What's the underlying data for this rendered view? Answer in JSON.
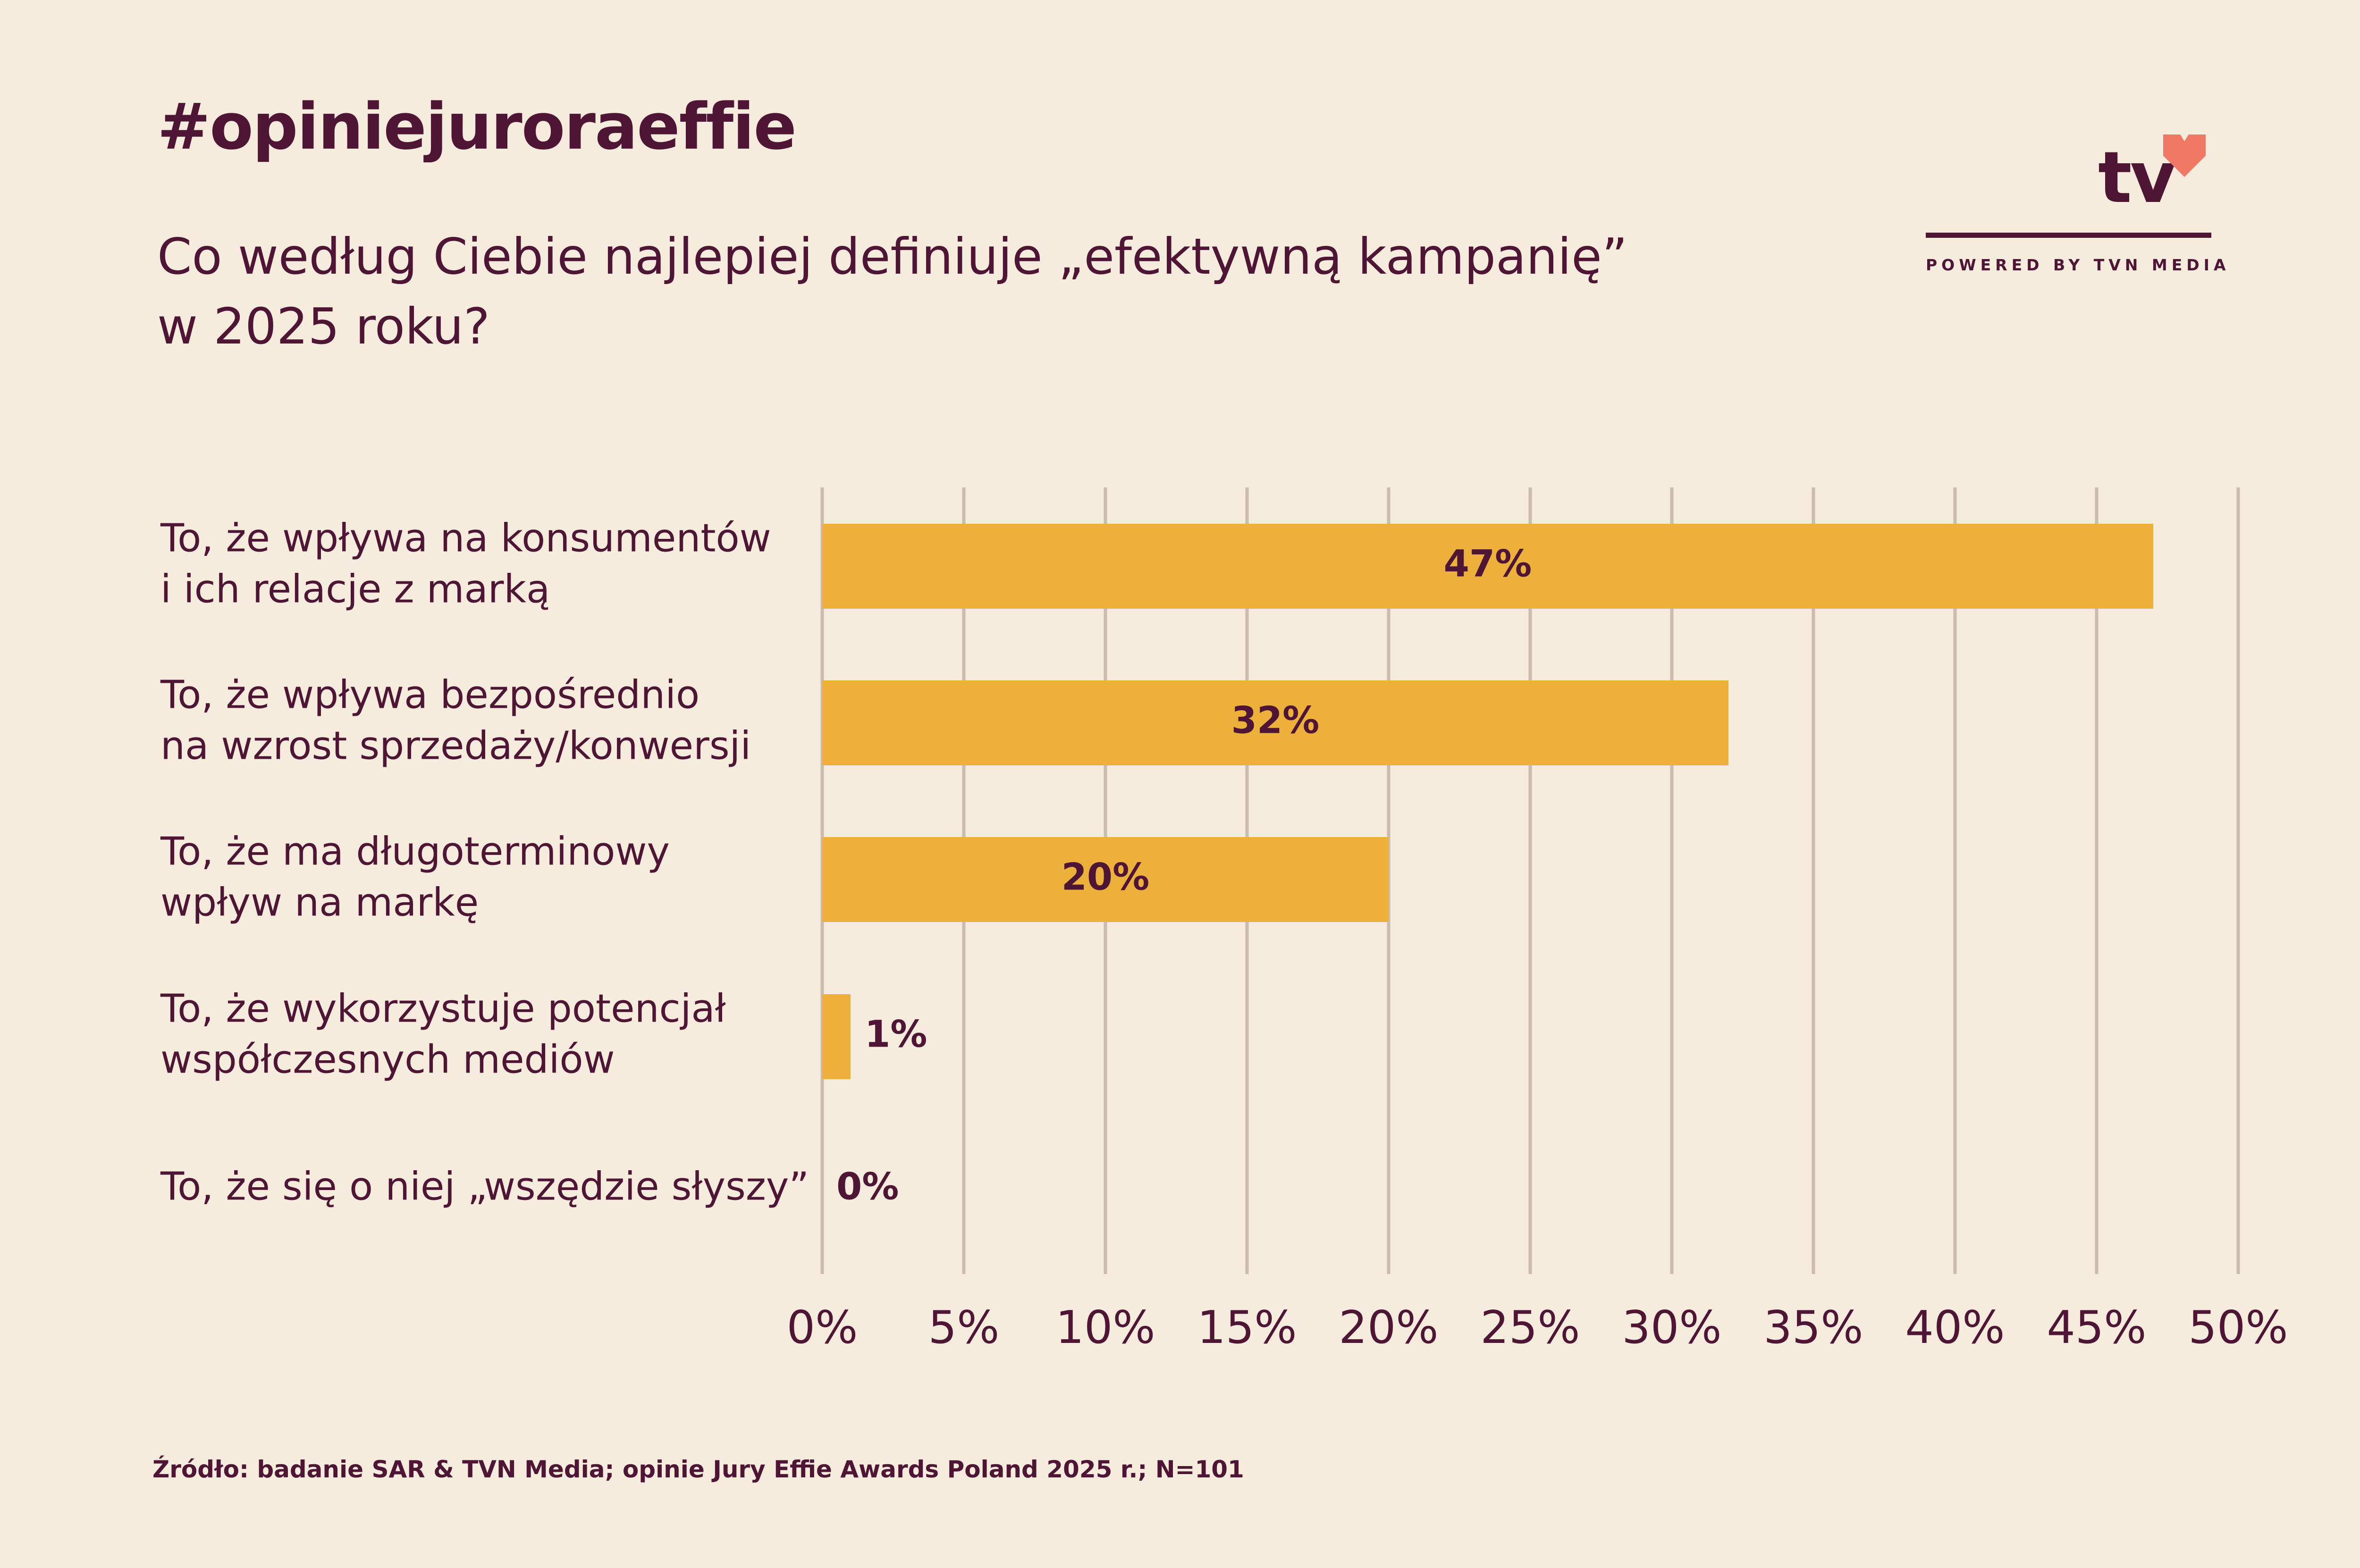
{
  "header": {
    "hashtag": "#opiniejuroraeffie",
    "question_line1": "Co według Ciebie najlepiej definiuje „efektywną kampanię”",
    "question_line2": "w 2025 roku?"
  },
  "logo": {
    "wordmark": "tv",
    "tagline": "POWERED BY TVN MEDIA",
    "heart_color": "#f07865"
  },
  "chart_data": {
    "type": "bar",
    "orientation": "horizontal",
    "categories": [
      [
        "To, że wpływa na konsumentów",
        "i ich relacje z marką"
      ],
      [
        "To, że wpływa bezpośrednio",
        "na wzrost sprzedaży/konwersji"
      ],
      [
        "To, że ma długoterminowy",
        "wpływ na markę"
      ],
      [
        "To, że wykorzystuje potencjał",
        "współczesnych mediów"
      ],
      [
        "To, że się o niej „wszędzie słyszy”"
      ]
    ],
    "values": [
      47,
      32,
      20,
      1,
      0
    ],
    "data_labels": [
      "47%",
      "32%",
      "20%",
      "1%",
      "0%"
    ],
    "xlim": [
      0,
      50
    ],
    "x_ticks": [
      0,
      5,
      10,
      15,
      20,
      25,
      30,
      35,
      40,
      45,
      50
    ],
    "x_tick_labels": [
      "0%",
      "5%",
      "10%",
      "15%",
      "20%",
      "25%",
      "30%",
      "35%",
      "40%",
      "45%",
      "50%"
    ],
    "grid": "vertical",
    "bar_color": "#edb03a",
    "grid_color": "#c9bbb0",
    "text_color": "#4e1535"
  },
  "footer": {
    "source": "Źródło: badanie SAR & TVN Media; opinie Jury Effie Awards Poland 2025 r.;  N=101"
  }
}
